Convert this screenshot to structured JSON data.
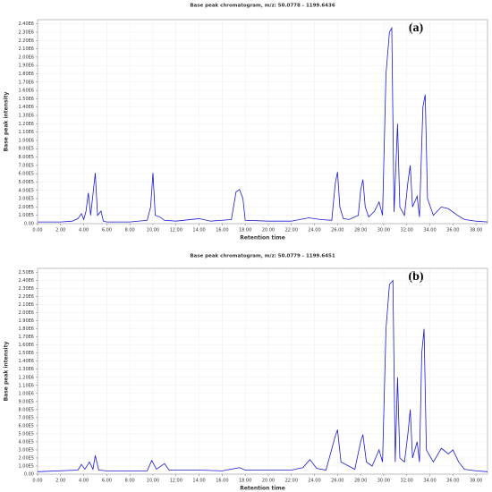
{
  "chart_data": [
    {
      "type": "line",
      "title": "Base peak chromatogram, m/z: 50.0778 - 1199.6436",
      "panel_label": "(a)",
      "x_label": "Retention time",
      "y_label": "Base peak intensity",
      "color": "#1a1ad0",
      "grid": true,
      "xlim": [
        0,
        39
      ],
      "ylim": [
        0,
        2450000
      ],
      "xticks": [
        {
          "value": 0,
          "label": "0.00"
        },
        {
          "value": 2,
          "label": "2.00"
        },
        {
          "value": 4,
          "label": "4.00"
        },
        {
          "value": 6,
          "label": "6.00"
        },
        {
          "value": 8,
          "label": "8.00"
        },
        {
          "value": 10,
          "label": "10.00"
        },
        {
          "value": 12,
          "label": "12.00"
        },
        {
          "value": 14,
          "label": "14.00"
        },
        {
          "value": 16,
          "label": "16.00"
        },
        {
          "value": 18,
          "label": "18.00"
        },
        {
          "value": 20,
          "label": "20.00"
        },
        {
          "value": 22,
          "label": "22.00"
        },
        {
          "value": 24,
          "label": "24.00"
        },
        {
          "value": 26,
          "label": "26.00"
        },
        {
          "value": 28,
          "label": "28.00"
        },
        {
          "value": 30,
          "label": "30.00"
        },
        {
          "value": 32,
          "label": "32.00"
        },
        {
          "value": 34,
          "label": "34.00"
        },
        {
          "value": 36,
          "label": "36.00"
        },
        {
          "value": 38,
          "label": "38.00"
        }
      ],
      "yticks": [
        {
          "value": 0,
          "label": "0.00"
        },
        {
          "value": 100000,
          "label": "1.00E5"
        },
        {
          "value": 200000,
          "label": "2.00E5"
        },
        {
          "value": 300000,
          "label": "3.00E5"
        },
        {
          "value": 400000,
          "label": "4.00E5"
        },
        {
          "value": 500000,
          "label": "5.00E5"
        },
        {
          "value": 600000,
          "label": "6.00E5"
        },
        {
          "value": 700000,
          "label": "7.00E5"
        },
        {
          "value": 800000,
          "label": "8.00E5"
        },
        {
          "value": 900000,
          "label": "9.00E5"
        },
        {
          "value": 1000000,
          "label": "1.00E6"
        },
        {
          "value": 1100000,
          "label": "1.10E6"
        },
        {
          "value": 1200000,
          "label": "1.20E6"
        },
        {
          "value": 1300000,
          "label": "1.30E6"
        },
        {
          "value": 1400000,
          "label": "1.40E6"
        },
        {
          "value": 1500000,
          "label": "1.50E6"
        },
        {
          "value": 1600000,
          "label": "1.60E6"
        },
        {
          "value": 1700000,
          "label": "1.70E6"
        },
        {
          "value": 1800000,
          "label": "1.80E6"
        },
        {
          "value": 1900000,
          "label": "1.90E6"
        },
        {
          "value": 2000000,
          "label": "2.00E6"
        },
        {
          "value": 2100000,
          "label": "2.10E6"
        },
        {
          "value": 2200000,
          "label": "2.20E6"
        },
        {
          "value": 2300000,
          "label": "2.30E6"
        },
        {
          "value": 2400000,
          "label": "2.40E6"
        }
      ],
      "x": [
        0,
        2,
        3,
        3.5,
        3.8,
        4.0,
        4.2,
        4.4,
        4.6,
        4.8,
        5.0,
        5.2,
        5.5,
        5.7,
        6,
        8,
        9.5,
        9.8,
        10.0,
        10.2,
        10.6,
        11,
        12,
        14,
        15,
        16,
        16.8,
        17.2,
        17.5,
        17.8,
        18,
        20,
        22,
        23.5,
        24.5,
        25.5,
        25.8,
        26.0,
        26.2,
        26.5,
        27,
        27.8,
        28.0,
        28.2,
        28.4,
        28.7,
        29.2,
        29.6,
        29.9,
        30.2,
        30.5,
        30.7,
        30.9,
        31.2,
        31.4,
        31.8,
        32.1,
        32.3,
        32.5,
        32.9,
        33.1,
        33.4,
        33.6,
        33.8,
        34.3,
        35,
        35.6,
        36.4,
        37,
        38,
        39
      ],
      "values": [
        20000,
        20000,
        30000,
        60000,
        120000,
        50000,
        150000,
        370000,
        100000,
        350000,
        610000,
        100000,
        150000,
        30000,
        20000,
        20000,
        40000,
        200000,
        610000,
        100000,
        80000,
        40000,
        30000,
        60000,
        30000,
        40000,
        50000,
        380000,
        410000,
        300000,
        40000,
        30000,
        30000,
        70000,
        50000,
        40000,
        480000,
        620000,
        200000,
        60000,
        50000,
        100000,
        400000,
        530000,
        200000,
        80000,
        150000,
        260000,
        100000,
        1800000,
        2300000,
        2350000,
        140000,
        1200000,
        200000,
        100000,
        500000,
        700000,
        200000,
        330000,
        80000,
        1400000,
        1550000,
        300000,
        100000,
        200000,
        180000,
        100000,
        50000,
        30000,
        20000
      ]
    },
    {
      "type": "line",
      "title": "Base peak chromatogram, m/z: 50.0779 - 1199.6451",
      "panel_label": "(b)",
      "x_label": "Retention time",
      "y_label": "Base peak intensity",
      "color": "#1a1ad0",
      "grid": true,
      "xlim": [
        0,
        39
      ],
      "ylim": [
        0,
        2550000
      ],
      "xticks": [
        {
          "value": 0,
          "label": "0.00"
        },
        {
          "value": 2,
          "label": "2.00"
        },
        {
          "value": 4,
          "label": "4.00"
        },
        {
          "value": 6,
          "label": "6.00"
        },
        {
          "value": 8,
          "label": "8.00"
        },
        {
          "value": 10,
          "label": "10.00"
        },
        {
          "value": 12,
          "label": "12.00"
        },
        {
          "value": 14,
          "label": "14.00"
        },
        {
          "value": 16,
          "label": "16.00"
        },
        {
          "value": 18,
          "label": "18.00"
        },
        {
          "value": 20,
          "label": "20.00"
        },
        {
          "value": 22,
          "label": "22.00"
        },
        {
          "value": 24,
          "label": "24.00"
        },
        {
          "value": 26,
          "label": "26.00"
        },
        {
          "value": 28,
          "label": "28.00"
        },
        {
          "value": 30,
          "label": "30.00"
        },
        {
          "value": 32,
          "label": "32.00"
        },
        {
          "value": 34,
          "label": "34.00"
        },
        {
          "value": 36,
          "label": "36.00"
        },
        {
          "value": 38,
          "label": "38.00"
        }
      ],
      "yticks": [
        {
          "value": 0,
          "label": "0.00"
        },
        {
          "value": 100000,
          "label": "1.00E5"
        },
        {
          "value": 200000,
          "label": "2.00E5"
        },
        {
          "value": 300000,
          "label": "3.00E5"
        },
        {
          "value": 400000,
          "label": "4.00E5"
        },
        {
          "value": 500000,
          "label": "5.00E5"
        },
        {
          "value": 600000,
          "label": "6.00E5"
        },
        {
          "value": 700000,
          "label": "7.00E5"
        },
        {
          "value": 800000,
          "label": "8.00E5"
        },
        {
          "value": 900000,
          "label": "9.00E5"
        },
        {
          "value": 1000000,
          "label": "1.00E6"
        },
        {
          "value": 1100000,
          "label": "1.10E6"
        },
        {
          "value": 1200000,
          "label": "1.20E6"
        },
        {
          "value": 1300000,
          "label": "1.30E6"
        },
        {
          "value": 1400000,
          "label": "1.40E6"
        },
        {
          "value": 1500000,
          "label": "1.50E6"
        },
        {
          "value": 1600000,
          "label": "1.60E6"
        },
        {
          "value": 1700000,
          "label": "1.70E6"
        },
        {
          "value": 1800000,
          "label": "1.80E6"
        },
        {
          "value": 1900000,
          "label": "1.90E6"
        },
        {
          "value": 2000000,
          "label": "2.00E6"
        },
        {
          "value": 2100000,
          "label": "2.10E6"
        },
        {
          "value": 2200000,
          "label": "2.20E6"
        },
        {
          "value": 2300000,
          "label": "2.30E6"
        },
        {
          "value": 2400000,
          "label": "2.40E6"
        },
        {
          "value": 2500000,
          "label": "2.50E6"
        }
      ],
      "x": [
        0,
        3.5,
        3.8,
        4.1,
        4.5,
        4.8,
        5.0,
        5.3,
        6,
        9.5,
        9.9,
        10.3,
        11,
        11.4,
        14,
        16,
        17.5,
        18,
        22,
        23,
        23.6,
        24.2,
        25,
        25.8,
        26.0,
        26.3,
        27.5,
        28.0,
        28.2,
        28.5,
        29,
        29.6,
        29.9,
        30.2,
        30.5,
        30.8,
        31.0,
        31.2,
        31.4,
        31.8,
        32.1,
        32.3,
        32.5,
        32.9,
        33.1,
        33.3,
        33.5,
        33.7,
        34.3,
        35,
        35.6,
        36,
        36.5,
        37,
        38,
        39
      ],
      "values": [
        30000,
        50000,
        120000,
        60000,
        150000,
        60000,
        230000,
        50000,
        40000,
        40000,
        170000,
        60000,
        130000,
        50000,
        50000,
        40000,
        80000,
        50000,
        50000,
        80000,
        180000,
        70000,
        50000,
        470000,
        550000,
        150000,
        60000,
        400000,
        490000,
        150000,
        100000,
        300000,
        150000,
        1800000,
        2350000,
        2400000,
        150000,
        1200000,
        200000,
        150000,
        500000,
        800000,
        200000,
        400000,
        150000,
        1500000,
        1800000,
        300000,
        150000,
        320000,
        250000,
        300000,
        150000,
        60000,
        40000,
        30000
      ]
    }
  ]
}
